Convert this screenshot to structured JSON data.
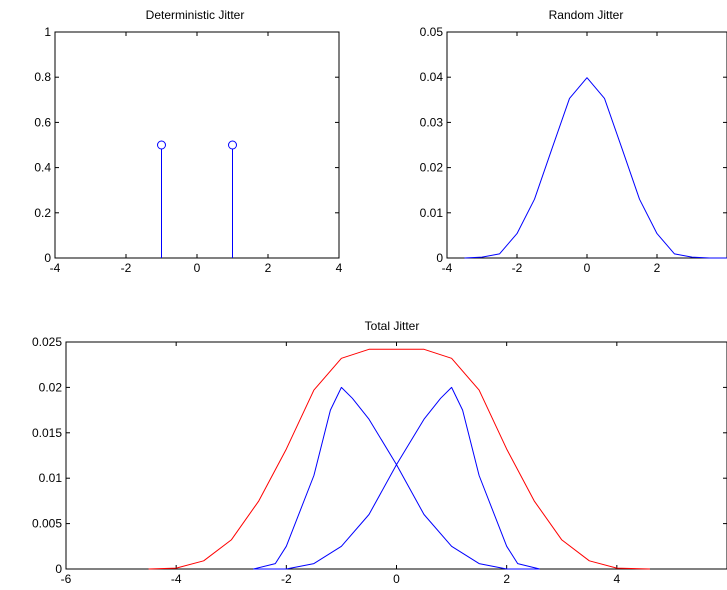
{
  "chart_data": [
    {
      "id": "deterministic",
      "type": "stem",
      "title": "Deterministic Jitter",
      "xlim": [
        -4,
        4
      ],
      "ylim": [
        0,
        1
      ],
      "xticks": [
        -4,
        -2,
        0,
        2,
        4
      ],
      "yticks": [
        0,
        0.2,
        0.4,
        0.6,
        0.8,
        1
      ],
      "xtick_labels": [
        "-4",
        "-2",
        "0",
        "2",
        "4"
      ],
      "ytick_labels": [
        "0",
        "0.2",
        "0.4",
        "0.6",
        "0.8",
        "1"
      ],
      "grid": false,
      "series": [
        {
          "color": "#0000ff",
          "marker": "circle",
          "points": [
            [
              -1,
              0.5
            ],
            [
              1,
              0.5
            ]
          ]
        }
      ]
    },
    {
      "id": "random",
      "type": "line",
      "title": "Random Jitter",
      "xlim": [
        -4,
        4
      ],
      "ylim": [
        0,
        0.05
      ],
      "xticks": [
        -4,
        -2,
        0,
        2,
        4
      ],
      "yticks": [
        0,
        0.01,
        0.02,
        0.03,
        0.04,
        0.05
      ],
      "xtick_labels": [
        "-4",
        "-2",
        "0",
        "2",
        ""
      ],
      "ytick_labels": [
        "0",
        "0.01",
        "0.02",
        "0.03",
        "0.04",
        "0.05"
      ],
      "grid": false,
      "series": [
        {
          "color": "#0000ff",
          "points": [
            [
              -3.5,
              0.0
            ],
            [
              -3.0,
              0.0002
            ],
            [
              -2.5,
              0.0009
            ],
            [
              -2.0,
              0.0054
            ],
            [
              -1.5,
              0.013
            ],
            [
              -1.0,
              0.0242
            ],
            [
              -0.5,
              0.0353
            ],
            [
              0.0,
              0.0399
            ],
            [
              0.5,
              0.0353
            ],
            [
              1.0,
              0.0242
            ],
            [
              1.5,
              0.013
            ],
            [
              2.0,
              0.0054
            ],
            [
              2.5,
              0.0009
            ],
            [
              3.0,
              0.0002
            ],
            [
              3.5,
              0.0
            ],
            [
              4.0,
              0.0
            ]
          ]
        }
      ]
    },
    {
      "id": "total",
      "type": "line",
      "title": "Total Jitter",
      "xlim": [
        -6,
        6
      ],
      "ylim": [
        0,
        0.025
      ],
      "xticks": [
        -6,
        -4,
        -2,
        0,
        2,
        4,
        6
      ],
      "yticks": [
        0,
        0.005,
        0.01,
        0.015,
        0.02,
        0.025
      ],
      "xtick_labels": [
        "-6",
        "-4",
        "-2",
        "0",
        "2",
        "4",
        ""
      ],
      "ytick_labels": [
        "0",
        "0.005",
        "0.01",
        "0.015",
        "0.02",
        "0.025"
      ],
      "grid": false,
      "series": [
        {
          "color": "#0000ff",
          "points": [
            [
              -2.6,
              0.0
            ],
            [
              -2.2,
              0.0006
            ],
            [
              -2.0,
              0.0025
            ],
            [
              -1.5,
              0.0103
            ],
            [
              -1.2,
              0.0175
            ],
            [
              -1.0,
              0.02
            ],
            [
              -0.8,
              0.0188
            ],
            [
              -0.5,
              0.0165
            ],
            [
              0.0,
              0.0115
            ],
            [
              0.5,
              0.006
            ],
            [
              1.0,
              0.0025
            ],
            [
              1.5,
              0.0006
            ],
            [
              2.0,
              0.0
            ],
            [
              2.6,
              0.0
            ]
          ]
        },
        {
          "color": "#0000ff",
          "points": [
            [
              -2.6,
              0.0
            ],
            [
              -2.0,
              0.0
            ],
            [
              -1.5,
              0.0006
            ],
            [
              -1.0,
              0.0025
            ],
            [
              -0.5,
              0.006
            ],
            [
              0.0,
              0.0115
            ],
            [
              0.5,
              0.0165
            ],
            [
              0.8,
              0.0188
            ],
            [
              1.0,
              0.02
            ],
            [
              1.2,
              0.0175
            ],
            [
              1.5,
              0.0103
            ],
            [
              2.0,
              0.0025
            ],
            [
              2.2,
              0.0006
            ],
            [
              2.6,
              0.0
            ]
          ]
        },
        {
          "color": "#ff0000",
          "points": [
            [
              -4.5,
              0.0
            ],
            [
              -4.0,
              0.0001
            ],
            [
              -3.5,
              0.0009
            ],
            [
              -3.0,
              0.0032
            ],
            [
              -2.5,
              0.0075
            ],
            [
              -2.0,
              0.0132
            ],
            [
              -1.5,
              0.0197
            ],
            [
              -1.0,
              0.0232
            ],
            [
              -0.5,
              0.0242
            ],
            [
              0.0,
              0.0242
            ],
            [
              0.5,
              0.0242
            ],
            [
              1.0,
              0.0232
            ],
            [
              1.5,
              0.0197
            ],
            [
              2.0,
              0.0132
            ],
            [
              2.5,
              0.0075
            ],
            [
              3.0,
              0.0032
            ],
            [
              3.5,
              0.0009
            ],
            [
              4.0,
              0.0001
            ],
            [
              4.6,
              0.0
            ]
          ]
        }
      ]
    }
  ]
}
